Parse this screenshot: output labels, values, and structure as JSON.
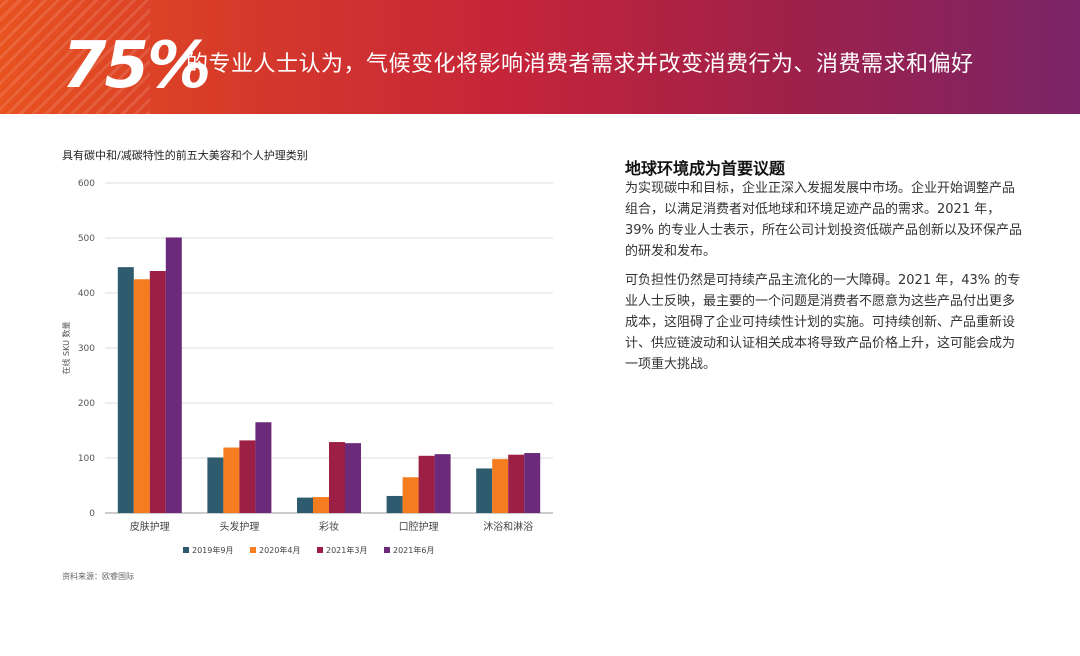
{
  "banner": {
    "big_number": "75%",
    "headline": "的专业人士认为，气候变化将影响消费者需求并改变消费行为、消费需求和偏好"
  },
  "side": {
    "title": "地球环境成为首要议题",
    "para1": "为实现碳中和目标，企业正深入发掘发展中市场。企业开始调整产品组合，以满足消费者对低地球和环境足迹产品的需求。2021 年，39% 的专业人士表示，所在公司计划投资低碳产品创新以及环保产品的研发和发布。",
    "para2": "可负担性仍然是可持续产品主流化的一大障碍。2021 年，43% 的专业人士反映，最主要的一个问题是消费者不愿意为这些产品付出更多成本，这阻碍了企业可持续性计划的实施。可持续创新、产品重新设计、供应链波动和认证相关成本将导致产品价格上升，这可能会成为一项重大挑战。"
  },
  "source": "资料来源：欧睿国际",
  "colors": {
    "s1": "#2e5b6e",
    "s2": "#f57c1f",
    "s3": "#9c1f45",
    "s4": "#6b2a7a"
  },
  "chart_data": {
    "type": "bar",
    "title": "具有碳中和/减碳特性的前五大美容和个人护理类别",
    "ylabel": "在线 SKU 数量",
    "xlabel": "",
    "ylim": [
      0,
      600
    ],
    "yticks": [
      0,
      100,
      200,
      300,
      400,
      500,
      600
    ],
    "grid": true,
    "legend_position": "bottom",
    "categories": [
      "皮肤护理",
      "头发护理",
      "彩妆",
      "口腔护理",
      "沐浴和淋浴"
    ],
    "series": [
      {
        "name": "2019年9月",
        "values": [
          447,
          101,
          28,
          31,
          81
        ]
      },
      {
        "name": "2020年4月",
        "values": [
          425,
          119,
          29,
          65,
          98
        ]
      },
      {
        "name": "2021年3月",
        "values": [
          440,
          132,
          129,
          104,
          106
        ]
      },
      {
        "name": "2021年6月",
        "values": [
          501,
          165,
          127,
          107,
          109
        ]
      }
    ]
  }
}
